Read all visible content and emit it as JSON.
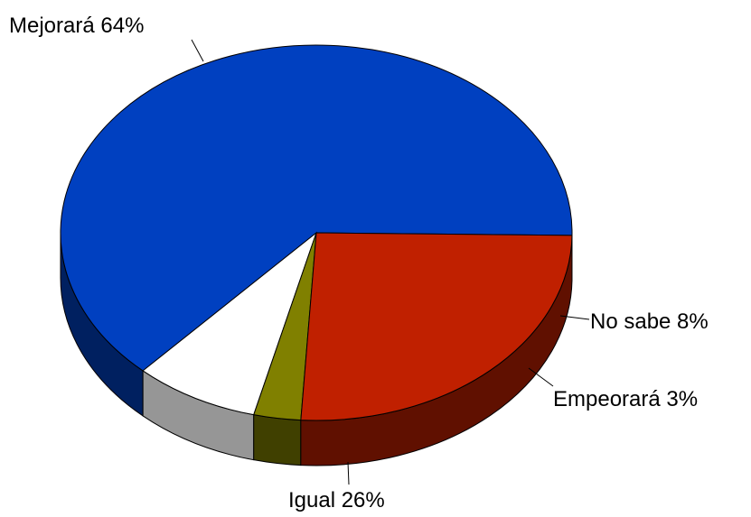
{
  "chart_data": {
    "type": "pie",
    "style": "3d",
    "title": "",
    "slices": [
      {
        "label": "Mejorará",
        "value": 64,
        "display": "Mejorará  64%",
        "color": "#0040C0"
      },
      {
        "label": "No sabe",
        "value": 8,
        "display": "No sabe  8%",
        "color": "#FFFFFF"
      },
      {
        "label": "Empeorará",
        "value": 3,
        "display": "Empeorará  3%",
        "color": "#808000"
      },
      {
        "label": "Igual",
        "value": 26,
        "display": "Igual  26%",
        "color": "#C02000"
      }
    ]
  }
}
